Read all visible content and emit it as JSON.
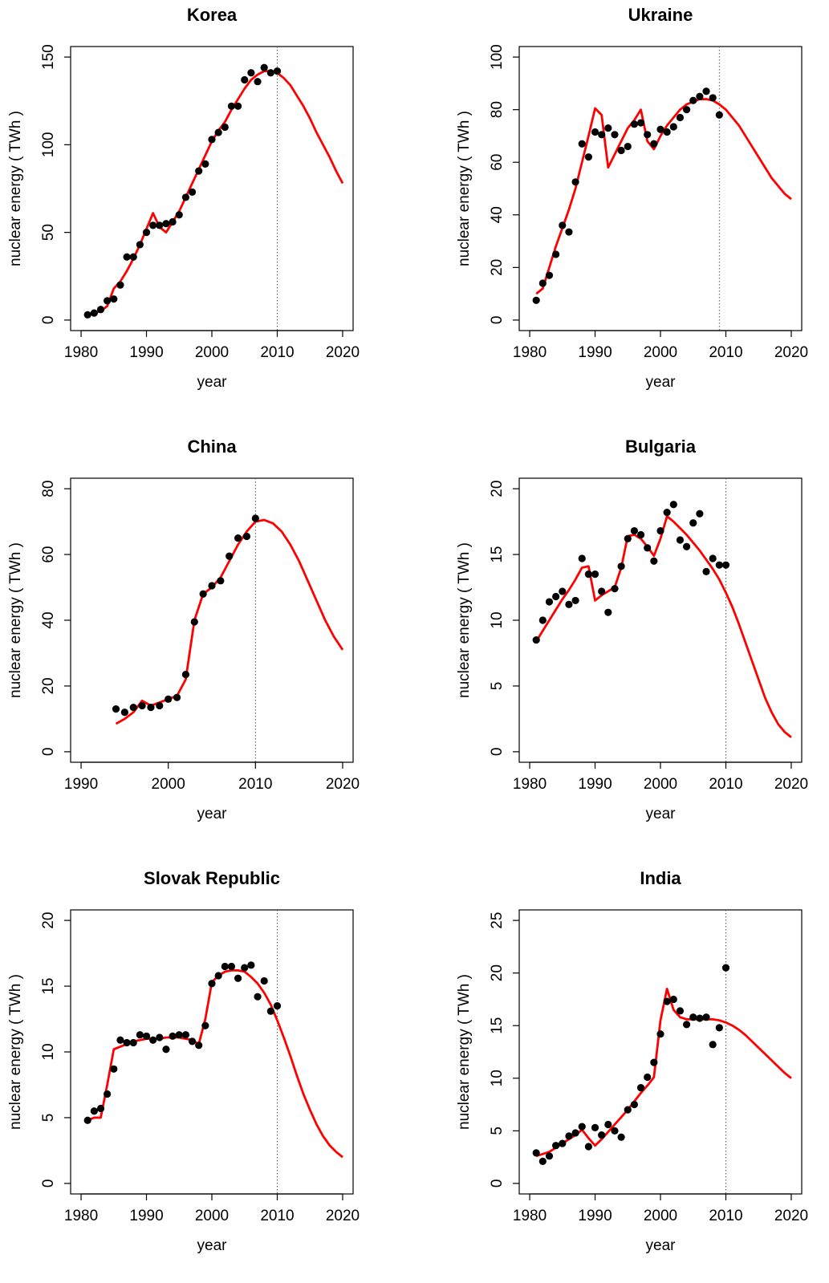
{
  "chart_data": [
    {
      "type": "scatter",
      "title": "Korea",
      "xlabel": "year",
      "ylabel": "nuclear energy  ( TWh )",
      "xlim": [
        1978.4,
        2021.6
      ],
      "ylim": [
        -6,
        156
      ],
      "xticks": [
        1980,
        1990,
        2000,
        2010,
        2020
      ],
      "yticks": [
        0,
        50,
        100,
        150
      ],
      "vline": 2010,
      "points": {
        "color": "#000000",
        "x": [
          1981,
          1982,
          1983,
          1984,
          1985,
          1986,
          1987,
          1988,
          1989,
          1990,
          1991,
          1992,
          1993,
          1994,
          1995,
          1996,
          1997,
          1998,
          1999,
          2000,
          2001,
          2002,
          2003,
          2004,
          2005,
          2006,
          2007,
          2008,
          2009,
          2010
        ],
        "values": [
          3,
          4,
          6,
          11,
          12,
          20,
          36,
          36,
          43,
          50,
          54,
          54,
          55,
          56,
          60,
          70,
          73,
          85,
          89,
          103,
          107,
          110,
          122,
          122,
          137,
          141,
          136,
          144,
          141,
          142
        ]
      },
      "fit": {
        "color": "#ff0000",
        "x": [
          1981,
          1982,
          1983,
          1984,
          1985,
          1986,
          1987,
          1988,
          1989,
          1990,
          1991,
          1992,
          1993,
          1994,
          1995,
          1996,
          1997,
          1998,
          1999,
          2000,
          2001,
          2002,
          2003,
          2004,
          2005,
          2006,
          2007,
          2008,
          2009,
          2010,
          2011,
          2012,
          2013,
          2014,
          2015,
          2016,
          2017,
          2018,
          2019,
          2020
        ],
        "values": [
          3,
          4,
          5,
          8,
          18,
          22,
          28,
          35,
          43,
          52,
          61,
          53,
          50,
          56,
          62,
          70,
          78,
          86,
          94,
          102,
          108,
          113,
          120,
          126,
          132,
          137,
          140,
          142,
          142,
          141,
          138,
          134,
          128,
          122,
          115,
          107,
          100,
          93,
          85,
          78
        ]
      }
    },
    {
      "type": "scatter",
      "title": "Ukraine",
      "xlabel": "year",
      "ylabel": "nuclear energy  ( TWh )",
      "xlim": [
        1978.4,
        2021.6
      ],
      "ylim": [
        -4,
        104
      ],
      "xticks": [
        1980,
        1990,
        2000,
        2010,
        2020
      ],
      "yticks": [
        0,
        20,
        40,
        60,
        80,
        100
      ],
      "vline": 2009,
      "points": {
        "color": "#000000",
        "x": [
          1981,
          1982,
          1983,
          1984,
          1985,
          1986,
          1987,
          1988,
          1989,
          1990,
          1991,
          1992,
          1993,
          1994,
          1995,
          1996,
          1997,
          1998,
          1999,
          2000,
          2001,
          2002,
          2003,
          2004,
          2005,
          2006,
          2007,
          2008,
          2009
        ],
        "values": [
          7.5,
          14,
          17,
          25,
          36,
          33.5,
          52.5,
          67,
          62,
          71.5,
          70.5,
          73,
          70.5,
          64.5,
          66,
          74.5,
          75,
          70.5,
          67,
          72.5,
          71.5,
          73.5,
          77,
          80,
          83.5,
          85,
          87,
          84.5,
          78
        ]
      },
      "fit": {
        "color": "#ff0000",
        "x": [
          1981,
          1982,
          1983,
          1984,
          1985,
          1986,
          1987,
          1988,
          1989,
          1990,
          1991,
          1992,
          1993,
          1994,
          1995,
          1996,
          1997,
          1998,
          1999,
          2000,
          2001,
          2002,
          2003,
          2004,
          2005,
          2006,
          2007,
          2008,
          2009,
          2010,
          2011,
          2012,
          2013,
          2014,
          2015,
          2016,
          2017,
          2018,
          2019,
          2020
        ],
        "values": [
          10,
          12,
          20,
          28,
          35,
          42,
          50,
          60,
          70,
          80.5,
          78,
          58,
          63,
          68,
          73,
          76,
          80,
          68,
          65,
          70,
          74,
          77,
          80,
          82,
          83,
          84,
          84,
          83.5,
          82,
          80,
          77,
          74,
          70,
          66,
          62,
          58,
          54,
          51,
          48,
          46
        ]
      }
    },
    {
      "type": "scatter",
      "title": "China",
      "xlabel": "year",
      "ylabel": "nuclear energy  ( TWh )",
      "xlim": [
        1988.8,
        2021.2
      ],
      "ylim": [
        -3.2,
        83.2
      ],
      "xticks": [
        1990,
        2000,
        2010,
        2020
      ],
      "yticks": [
        0,
        20,
        40,
        60,
        80
      ],
      "vline": 2010,
      "points": {
        "color": "#000000",
        "x": [
          1994,
          1995,
          1996,
          1997,
          1998,
          1999,
          2000,
          2001,
          2002,
          2003,
          2004,
          2005,
          2006,
          2007,
          2008,
          2009,
          2010
        ],
        "values": [
          13,
          12,
          13.5,
          14,
          13.5,
          14,
          16,
          16.5,
          23.5,
          39.5,
          48,
          50.5,
          52,
          59.5,
          65,
          65.5,
          71
        ]
      },
      "fit": {
        "color": "#ff0000",
        "x": [
          1994,
          1995,
          1996,
          1997,
          1998,
          1999,
          2000,
          2001,
          2002,
          2003,
          2004,
          2005,
          2006,
          2007,
          2008,
          2009,
          2010,
          2011,
          2012,
          2013,
          2014,
          2015,
          2016,
          2017,
          2018,
          2019,
          2020
        ],
        "values": [
          8.5,
          10,
          12,
          15.5,
          14,
          15,
          16,
          17,
          22,
          40,
          48,
          50,
          53,
          58,
          63,
          67,
          70,
          70.5,
          69.5,
          67,
          63,
          58,
          52,
          46,
          40,
          35,
          31
        ]
      }
    },
    {
      "type": "scatter",
      "title": "Bulgaria",
      "xlabel": "year",
      "ylabel": "nuclear energy  ( TWh )",
      "xlim": [
        1978.4,
        2021.6
      ],
      "ylim": [
        -0.8,
        20.8
      ],
      "xticks": [
        1980,
        1990,
        2000,
        2010,
        2020
      ],
      "yticks": [
        0,
        5,
        10,
        15,
        20
      ],
      "vline": 2010,
      "points": {
        "color": "#000000",
        "x": [
          1981,
          1982,
          1983,
          1984,
          1985,
          1986,
          1987,
          1988,
          1989,
          1990,
          1991,
          1992,
          1993,
          1994,
          1995,
          1996,
          1997,
          1998,
          1999,
          2000,
          2001,
          2002,
          2003,
          2004,
          2005,
          2006,
          2007,
          2008,
          2009,
          2010
        ],
        "values": [
          8.5,
          10,
          11.4,
          11.8,
          12.2,
          11.2,
          11.5,
          14.7,
          13.5,
          13.5,
          12.2,
          10.6,
          12.4,
          14.1,
          16.2,
          16.8,
          16.5,
          15.5,
          14.5,
          16.8,
          18.2,
          18.8,
          16.1,
          15.6,
          17.4,
          18.1,
          13.7,
          14.7,
          14.2,
          14.2
        ]
      },
      "fit": {
        "color": "#ff0000",
        "x": [
          1981,
          1982,
          1983,
          1984,
          1985,
          1986,
          1987,
          1988,
          1989,
          1990,
          1991,
          1992,
          1993,
          1994,
          1995,
          1996,
          1997,
          1998,
          1999,
          2000,
          2001,
          2002,
          2003,
          2004,
          2005,
          2006,
          2007,
          2008,
          2009,
          2010,
          2011,
          2012,
          2013,
          2014,
          2015,
          2016,
          2017,
          2018,
          2019,
          2020
        ],
        "values": [
          8.4,
          9.2,
          10,
          10.8,
          11.6,
          12.3,
          13.1,
          14,
          14.1,
          11.5,
          11.9,
          12.2,
          12.5,
          14,
          16.4,
          16.5,
          16.2,
          15.6,
          14.9,
          16.2,
          17.9,
          17.5,
          17,
          16.5,
          15.9,
          15.3,
          14.6,
          13.9,
          13.1,
          12.1,
          11,
          9.7,
          8.3,
          6.9,
          5.5,
          4.1,
          3,
          2.1,
          1.5,
          1.1
        ]
      }
    },
    {
      "type": "scatter",
      "title": "Slovak Republic",
      "xlabel": "year",
      "ylabel": "nuclear energy  ( TWh )",
      "xlim": [
        1978.4,
        2021.6
      ],
      "ylim": [
        -0.8,
        20.8
      ],
      "xticks": [
        1980,
        1990,
        2000,
        2010,
        2020
      ],
      "yticks": [
        0,
        5,
        10,
        15,
        20
      ],
      "vline": 2010,
      "points": {
        "color": "#000000",
        "x": [
          1981,
          1982,
          1983,
          1984,
          1985,
          1986,
          1987,
          1988,
          1989,
          1990,
          1991,
          1992,
          1993,
          1994,
          1995,
          1996,
          1997,
          1998,
          1999,
          2000,
          2001,
          2002,
          2003,
          2004,
          2005,
          2006,
          2007,
          2008,
          2009,
          2010
        ],
        "values": [
          4.8,
          5.5,
          5.7,
          6.8,
          8.7,
          10.9,
          10.7,
          10.7,
          11.3,
          11.2,
          10.9,
          11.1,
          10.2,
          11.2,
          11.3,
          11.3,
          10.8,
          10.5,
          12,
          15.2,
          15.8,
          16.5,
          16.5,
          15.6,
          16.4,
          16.6,
          14.2,
          15.4,
          13.1,
          13.5
        ]
      },
      "fit": {
        "color": "#ff0000",
        "x": [
          1981,
          1982,
          1983,
          1984,
          1985,
          1986,
          1987,
          1988,
          1989,
          1990,
          1991,
          1992,
          1993,
          1994,
          1995,
          1996,
          1997,
          1998,
          1999,
          2000,
          2001,
          2002,
          2003,
          2004,
          2005,
          2006,
          2007,
          2008,
          2009,
          2010,
          2011,
          2012,
          2013,
          2014,
          2015,
          2016,
          2017,
          2018,
          2019,
          2020
        ],
        "values": [
          4.8,
          5,
          5,
          7.5,
          10.2,
          10.4,
          10.6,
          10.8,
          10.9,
          11,
          11,
          11,
          11.1,
          11.1,
          11.1,
          11,
          10.9,
          10.6,
          12.5,
          15.3,
          15.8,
          16.1,
          16.2,
          16.2,
          16.1,
          15.7,
          15.2,
          14.5,
          13.6,
          12.4,
          11.1,
          9.7,
          8.2,
          6.8,
          5.6,
          4.5,
          3.6,
          2.9,
          2.4,
          2
        ]
      }
    },
    {
      "type": "scatter",
      "title": "India",
      "xlabel": "year",
      "ylabel": "nuclear energy  ( TWh )",
      "xlim": [
        1978.4,
        2021.6
      ],
      "ylim": [
        -1,
        26
      ],
      "xticks": [
        1980,
        1990,
        2000,
        2010,
        2020
      ],
      "yticks": [
        0,
        5,
        10,
        15,
        20,
        25
      ],
      "vline": 2010,
      "points": {
        "color": "#000000",
        "x": [
          1981,
          1982,
          1983,
          1984,
          1985,
          1986,
          1987,
          1988,
          1989,
          1990,
          1991,
          1992,
          1993,
          1994,
          1995,
          1996,
          1997,
          1998,
          1999,
          2000,
          2001,
          2002,
          2003,
          2004,
          2005,
          2006,
          2007,
          2008,
          2009,
          2010
        ],
        "values": [
          2.9,
          2.1,
          2.6,
          3.6,
          3.8,
          4.5,
          4.8,
          5.4,
          3.5,
          5.3,
          4.6,
          5.6,
          5,
          4.4,
          7,
          7.5,
          9.1,
          10.1,
          11.5,
          14.2,
          17.3,
          17.5,
          16.4,
          15.1,
          15.8,
          15.7,
          15.8,
          13.2,
          14.8,
          20.5
        ]
      },
      "fit": {
        "color": "#ff0000",
        "x": [
          1981,
          1982,
          1983,
          1984,
          1985,
          1986,
          1987,
          1988,
          1989,
          1990,
          1991,
          1992,
          1993,
          1994,
          1995,
          1996,
          1997,
          1998,
          1999,
          2000,
          2001,
          2002,
          2003,
          2004,
          2005,
          2006,
          2007,
          2008,
          2009,
          2010,
          2011,
          2012,
          2013,
          2014,
          2015,
          2016,
          2017,
          2018,
          2019,
          2020
        ],
        "values": [
          2.6,
          2.8,
          3,
          3.4,
          3.8,
          4.2,
          4.6,
          5.1,
          4.3,
          3.6,
          4.2,
          4.9,
          5.6,
          6.3,
          7,
          7.8,
          8.6,
          9.3,
          10.1,
          15.5,
          18.5,
          16.5,
          15.8,
          15.6,
          15.6,
          15.6,
          15.6,
          15.6,
          15.5,
          15.3,
          15,
          14.6,
          14.1,
          13.5,
          12.9,
          12.3,
          11.7,
          11.1,
          10.5,
          10
        ]
      }
    }
  ]
}
